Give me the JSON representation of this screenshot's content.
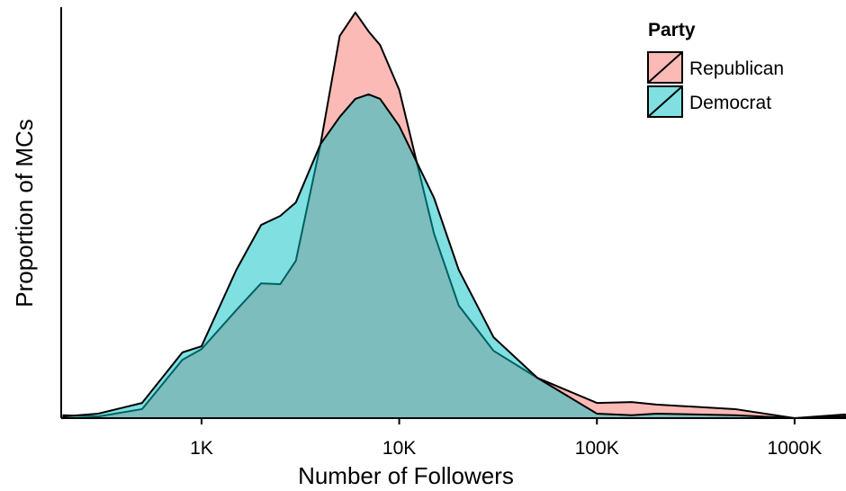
{
  "chart_data": {
    "type": "density",
    "x_label": "Number of Followers",
    "y_label": "Proportion of MCs",
    "x": [
      200,
      300,
      500,
      800,
      1000,
      1500,
      2000,
      2500,
      3000,
      4000,
      5000,
      6000,
      7000,
      8000,
      10000,
      15000,
      20000,
      30000,
      50000,
      100000,
      150000,
      200000,
      500000,
      1000000,
      1800000
    ],
    "series": [
      {
        "name": "Republican",
        "color": "#f8766d",
        "values": [
          0.007,
          0.004,
          0.022,
          0.142,
          0.168,
          0.263,
          0.328,
          0.326,
          0.383,
          0.667,
          0.93,
          0.987,
          0.941,
          0.908,
          0.799,
          0.449,
          0.274,
          0.164,
          0.098,
          0.037,
          0.039,
          0.033,
          0.022,
          0,
          0.009
        ]
      },
      {
        "name": "Democrat",
        "color": "#00bfc4",
        "values": [
          0.004,
          0.011,
          0.037,
          0.16,
          0.175,
          0.361,
          0.47,
          0.492,
          0.525,
          0.667,
          0.733,
          0.777,
          0.788,
          0.777,
          0.711,
          0.536,
          0.361,
          0.197,
          0.098,
          0.011,
          0.007,
          0.011,
          0.007,
          0,
          0.004
        ]
      }
    ],
    "log_x": true,
    "xlim": [
      195,
      1820000
    ],
    "ylim": [
      0,
      1
    ],
    "xticks": [
      {
        "value": 1000,
        "label": "1K"
      },
      {
        "value": 10000,
        "label": "10K"
      },
      {
        "value": 100000,
        "label": "100K"
      },
      {
        "value": 1000000,
        "label": "1000K"
      }
    ],
    "legend_title": "Party",
    "legend_position": "top-right",
    "fill_opacity": 0.5
  }
}
